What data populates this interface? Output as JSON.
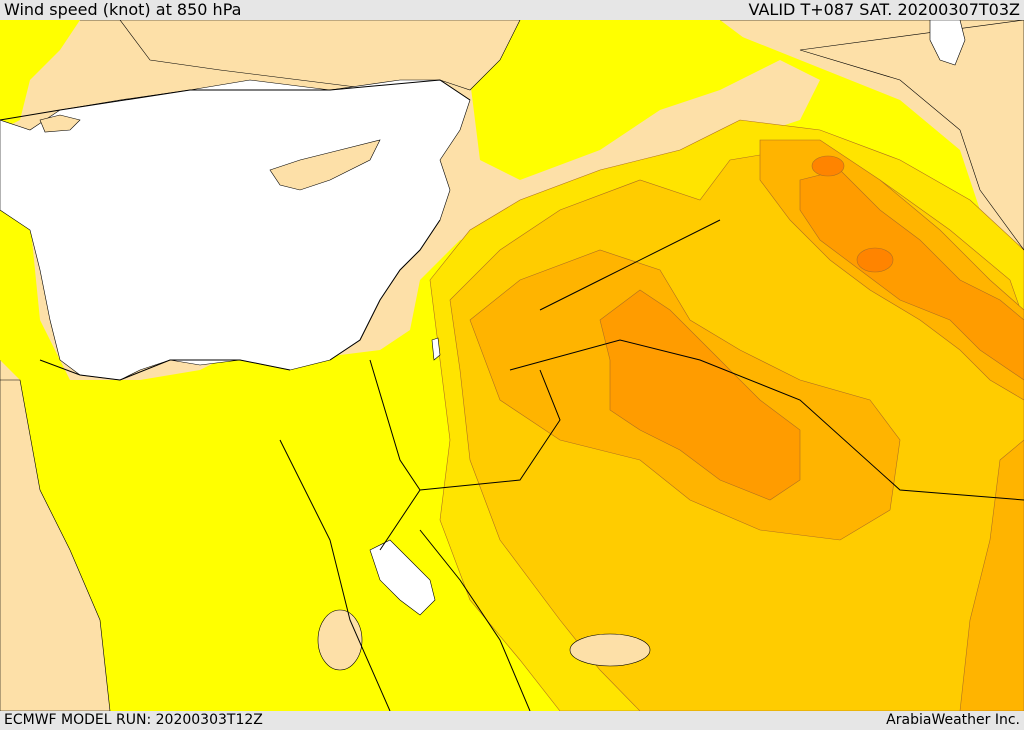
{
  "header": {
    "title": "Wind speed (knot) at 850 hPa",
    "valid_time": "VALID T+087 SAT. 20200307T03Z"
  },
  "footer": {
    "model_run": "ECMWF MODEL RUN: 20200303T12Z",
    "credit": "ArabiaWeather Inc."
  },
  "colors": {
    "sea": "#ffffff",
    "calm": "#fde0a8",
    "level1": "#ffff00",
    "level2": "#ffe400",
    "level3": "#ffcc00",
    "level4": "#ffb400",
    "level5": "#ff9c00",
    "level6": "#ff8400",
    "outline": "#000000"
  }
}
